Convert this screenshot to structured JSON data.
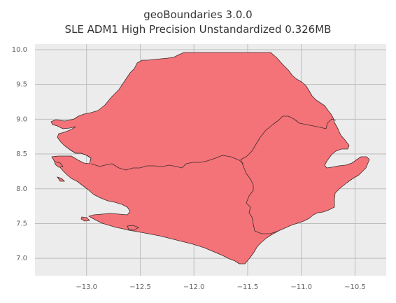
{
  "header": {
    "title": "geoBoundaries 3.0.0",
    "subtitle": "SLE ADM1 High Precision Unstandardized 0.326MB"
  },
  "chart_data": {
    "type": "map",
    "xlim": [
      -13.48,
      -10.21
    ],
    "ylim": [
      6.75,
      10.08
    ],
    "x_ticks": [
      {
        "value": -13.0,
        "label": "−13.0"
      },
      {
        "value": -12.5,
        "label": "−12.5"
      },
      {
        "value": -12.0,
        "label": "−12.0"
      },
      {
        "value": -11.5,
        "label": "−11.5"
      },
      {
        "value": -11.0,
        "label": "−11.0"
      },
      {
        "value": -10.5,
        "label": "−10.5"
      }
    ],
    "y_ticks": [
      {
        "value": 10.0,
        "label": "10.0"
      },
      {
        "value": 9.5,
        "label": "9.5"
      },
      {
        "value": 9.0,
        "label": "9.0"
      },
      {
        "value": 8.5,
        "label": "8.5"
      },
      {
        "value": 8.0,
        "label": "8.0"
      },
      {
        "value": 7.5,
        "label": "7.5"
      },
      {
        "value": 7.0,
        "label": "7.0"
      }
    ],
    "grid": true,
    "colors": {
      "fill": "#f47378",
      "edge": "#3d2b2b",
      "plot_background": "#ececec",
      "grid": "#bdbdbd"
    }
  }
}
